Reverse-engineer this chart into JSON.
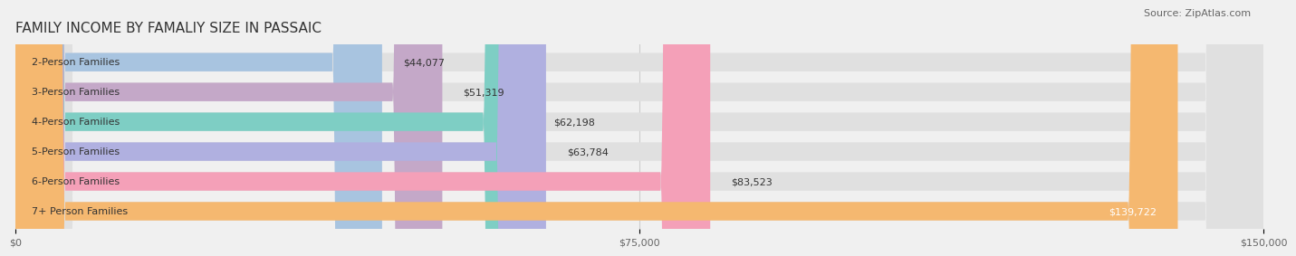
{
  "title": "FAMILY INCOME BY FAMALIY SIZE IN PASSAIC",
  "source": "Source: ZipAtlas.com",
  "categories": [
    "2-Person Families",
    "3-Person Families",
    "4-Person Families",
    "5-Person Families",
    "6-Person Families",
    "7+ Person Families"
  ],
  "values": [
    44077,
    51319,
    62198,
    63784,
    83523,
    139722
  ],
  "labels": [
    "$44,077",
    "$51,319",
    "$62,198",
    "$63,784",
    "$83,523",
    "$139,722"
  ],
  "bar_colors": [
    "#a8c4e0",
    "#c4a8c8",
    "#7ecec4",
    "#b0b0e0",
    "#f4a0b8",
    "#f5b870"
  ],
  "background_color": "#f0f0f0",
  "xlim": [
    0,
    150000
  ],
  "xticks": [
    0,
    75000,
    150000
  ],
  "xticklabels": [
    "$0",
    "$75,000",
    "$150,000"
  ],
  "title_fontsize": 11,
  "label_fontsize": 8,
  "tick_fontsize": 8,
  "source_fontsize": 8,
  "bar_height": 0.62
}
